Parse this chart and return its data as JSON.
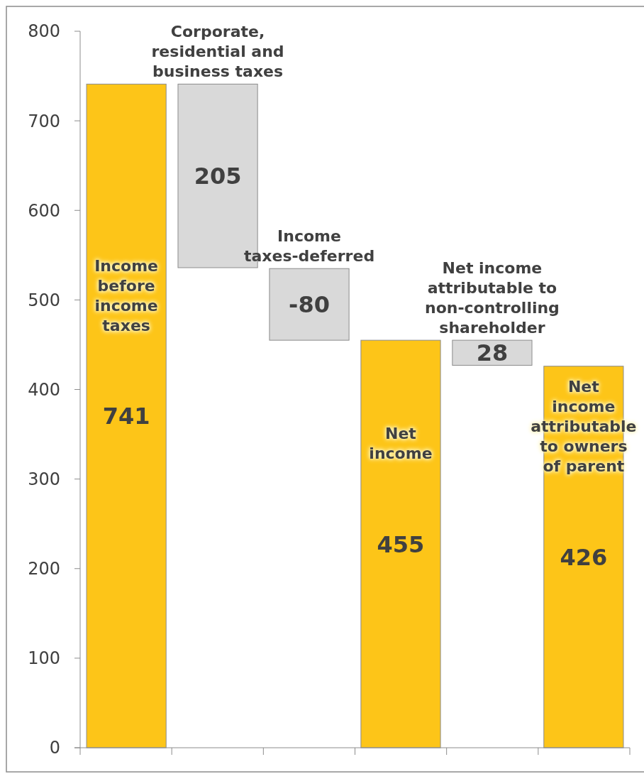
{
  "chart_data": {
    "type": "bar",
    "categories": [
      null,
      null,
      null,
      null,
      null,
      null
    ],
    "values": [
      741,
      205,
      -80,
      455,
      28,
      426
    ],
    "base": [
      0,
      536,
      535,
      0,
      427,
      0
    ],
    "colors": [
      "#fdc518",
      "#d9d9d9",
      "#d9d9d9",
      "#fdc518",
      "#d9d9d9",
      "#fdc518"
    ],
    "value_labels": [
      "741",
      "205",
      "-80",
      "455",
      "28",
      "426"
    ],
    "annotations": [
      "Income before income taxes",
      "Corporate, residential and business taxes",
      "Income taxes-deferred",
      "Net income",
      "Net income attributable to non-controlling shareholder",
      "Net income attributable to owners of parent"
    ],
    "ylim": [
      0,
      800
    ],
    "yticks": [
      0,
      100,
      200,
      300,
      400,
      500,
      600,
      700,
      800
    ]
  }
}
